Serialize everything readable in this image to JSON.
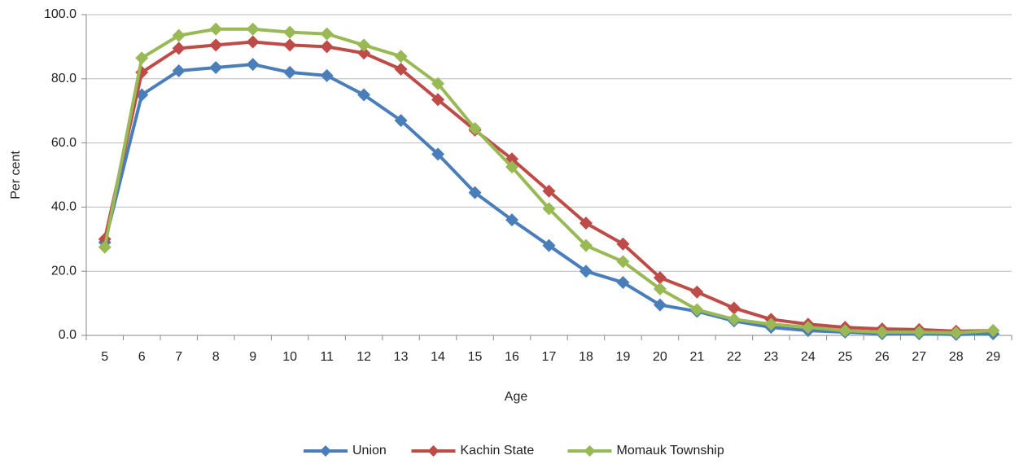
{
  "chart_data": {
    "type": "line",
    "x_label": "Age",
    "y_label": "Per cent",
    "categories": [
      "5",
      "6",
      "7",
      "8",
      "9",
      "10",
      "11",
      "12",
      "13",
      "14",
      "15",
      "16",
      "17",
      "18",
      "19",
      "20",
      "21",
      "22",
      "23",
      "24",
      "25",
      "26",
      "27",
      "28",
      "29"
    ],
    "series": [
      {
        "name": "Union",
        "color": "#4a7ebb",
        "values": [
          29,
          75,
          82.5,
          83.5,
          84.5,
          82,
          81,
          75,
          67,
          56.5,
          44.5,
          36,
          28,
          20,
          16.5,
          9.5,
          7.5,
          4.5,
          2.5,
          1.5,
          1,
          0.5,
          0.5,
          0.3,
          0.5
        ]
      },
      {
        "name": "Kachin State",
        "color": "#be4b48",
        "values": [
          30,
          82,
          89.5,
          90.5,
          91.5,
          90.5,
          90,
          88,
          83,
          73.5,
          64,
          55,
          45,
          35,
          28.5,
          18,
          13.5,
          8.5,
          5,
          3.5,
          2.5,
          2,
          1.8,
          1.3,
          1.5
        ]
      },
      {
        "name": "Momauk Township",
        "color": "#98b954",
        "values": [
          27.5,
          86.5,
          93.5,
          95.5,
          95.5,
          94.5,
          94,
          90.5,
          87,
          78.5,
          64.5,
          52.5,
          39.5,
          28,
          23,
          14.5,
          8,
          5,
          3.5,
          2.5,
          1.5,
          1,
          1,
          0.8,
          1.5
        ]
      }
    ],
    "ylim": [
      0,
      100
    ],
    "yticks": [
      {
        "value": 0,
        "label": "0.0"
      },
      {
        "value": 20,
        "label": "20.0"
      },
      {
        "value": 40,
        "label": "40.0"
      },
      {
        "value": 60,
        "label": "60.0"
      },
      {
        "value": 80,
        "label": "80.0"
      },
      {
        "value": 100,
        "label": "100.0"
      }
    ],
    "grid": true,
    "legend": "bottom"
  }
}
